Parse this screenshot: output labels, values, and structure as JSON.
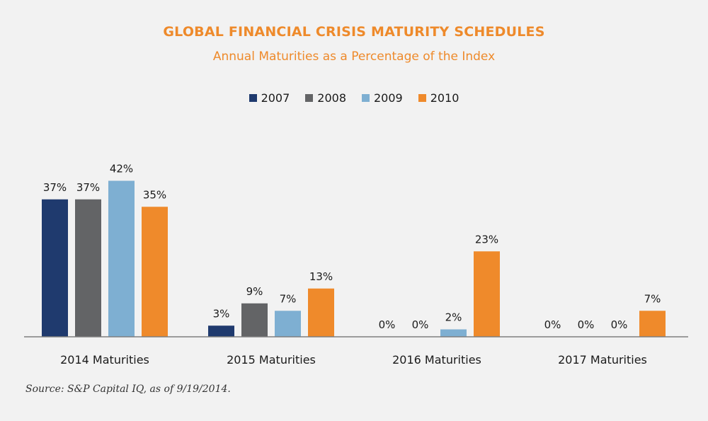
{
  "colors": {
    "title": "#ee8a2b",
    "series": [
      "#1f3a6e",
      "#636466",
      "#7eafd2",
      "#ef8a2b"
    ],
    "axis": "#7f7f7f",
    "text": "#1a1a1a"
  },
  "chart_data": {
    "type": "bar",
    "title": "GLOBAL FINANCIAL CRISIS MATURITY SCHEDULES",
    "subtitle": "Annual Maturities as a Percentage of the Index",
    "categories": [
      "2014 Maturities",
      "2015 Maturities",
      "2016 Maturities",
      "2017 Maturities"
    ],
    "series": [
      {
        "name": "2007",
        "values": [
          37,
          3,
          0,
          0
        ],
        "labels": [
          "37%",
          "3%",
          "0%",
          "0%"
        ]
      },
      {
        "name": "2008",
        "values": [
          37,
          9,
          0,
          0
        ],
        "labels": [
          "37%",
          "9%",
          "0%",
          "0%"
        ]
      },
      {
        "name": "2009",
        "values": [
          42,
          7,
          2,
          0
        ],
        "labels": [
          "42%",
          "7%",
          "2%",
          "0%"
        ]
      },
      {
        "name": "2010",
        "values": [
          35,
          13,
          23,
          7
        ],
        "labels": [
          "35%",
          "13%",
          "23%",
          "7%"
        ]
      }
    ],
    "xlabel": "",
    "ylabel": "",
    "ylim": [
      0,
      50
    ],
    "grid": false,
    "legend_position": "top-center"
  },
  "footer": {
    "source": "Source: S&P Capital IQ, as of 9/19/2014."
  }
}
